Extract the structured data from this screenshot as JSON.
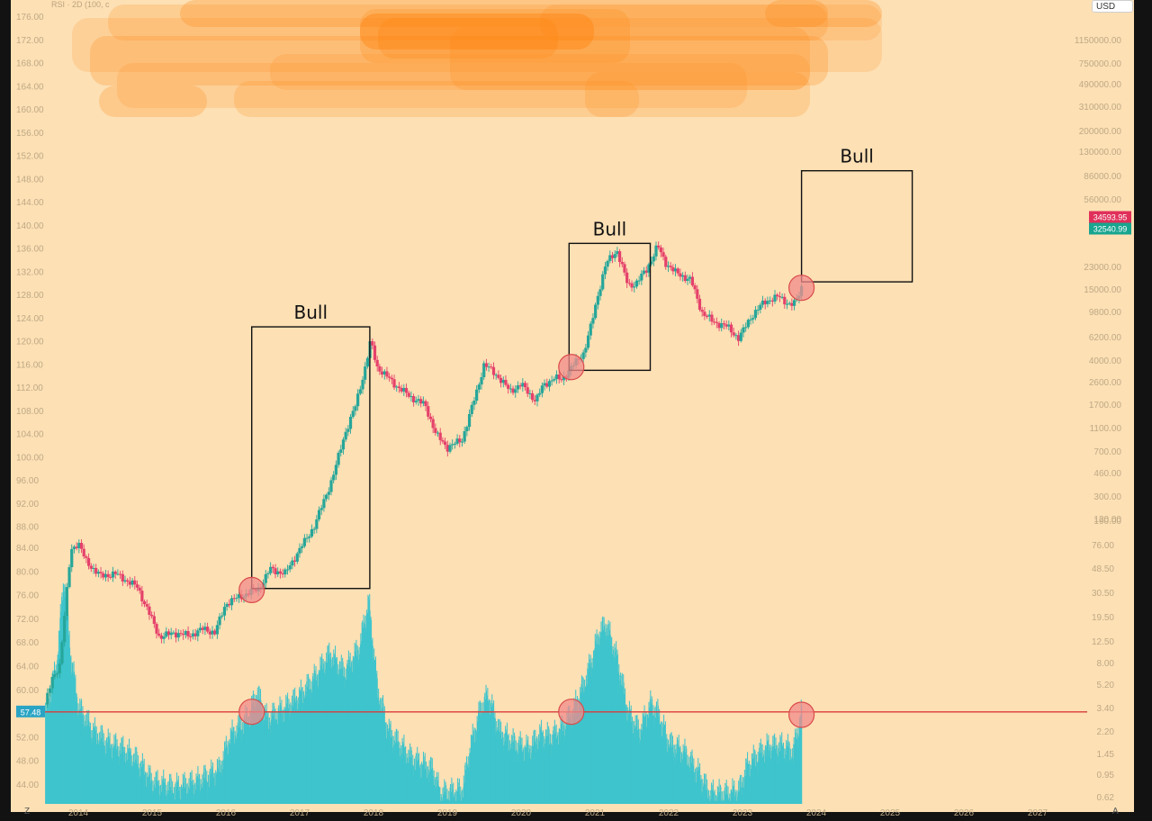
{
  "header": {
    "indicator_label": "RSI · 2D (100, c",
    "currency_badge": "USD",
    "corner_left": "Z",
    "corner_right": "A"
  },
  "colors": {
    "background": "#fde0b4",
    "frame": "#121212",
    "up": "#26a69a",
    "down": "#e5416b",
    "rsi_bar": "#3fc4cc",
    "reference_line": "#d93c3c",
    "circle_fill": "#f28b8b",
    "circle_stroke": "#d94b4b",
    "box_stroke": "#111111",
    "label_text": "#bfa985",
    "price_tag_red": "#e0305a",
    "price_tag_green": "#18a58f",
    "rsi_tag": "#2aa4c4",
    "smudge": "#ff8c1a"
  },
  "chart_data": {
    "type": "candlestick_with_rsi_histogram",
    "x_axis": {
      "labels": [
        "2014",
        "2015",
        "2016",
        "2017",
        "2018",
        "2019",
        "2020",
        "2021",
        "2022",
        "2023",
        "2024",
        "2025",
        "2026",
        "2027"
      ]
    },
    "price_panel": {
      "scale": "log",
      "left_axis_labels": [
        "176.00",
        "172.00",
        "168.00",
        "164.00",
        "160.00",
        "156.00",
        "152.00",
        "148.00",
        "144.00",
        "140.00",
        "136.00",
        "132.00",
        "128.00",
        "124.00",
        "120.00",
        "116.00",
        "112.00",
        "108.00",
        "104.00",
        "100.00",
        "96.00",
        "92.00",
        "88.00"
      ],
      "right_axis_labels": [
        "1150000.00",
        "750000.00",
        "490000.00",
        "310000.00",
        "200000.00",
        "130000.00",
        "86000.00",
        "56000.00",
        "23000.00",
        "15000.00",
        "9800.00",
        "6200.00",
        "4000.00",
        "2600.00",
        "1700.00",
        "1100.00",
        "700.00",
        "460.00",
        "300.00",
        "190.00",
        "120.00"
      ],
      "price_tags": [
        {
          "label": "34593.95",
          "color": "red"
        },
        {
          "label": "32540.99",
          "color": "green"
        }
      ],
      "path": [
        [
          2013.55,
          90
        ],
        [
          2013.65,
          130
        ],
        [
          2013.75,
          160
        ],
        [
          2013.9,
          820
        ],
        [
          2014.0,
          900
        ],
        [
          2014.1,
          700
        ],
        [
          2014.3,
          560
        ],
        [
          2014.5,
          580
        ],
        [
          2014.8,
          480
        ],
        [
          2015.0,
          300
        ],
        [
          2015.1,
          235
        ],
        [
          2015.3,
          250
        ],
        [
          2015.5,
          240
        ],
        [
          2015.7,
          265
        ],
        [
          2015.85,
          250
        ],
        [
          2016.0,
          380
        ],
        [
          2016.2,
          420
        ],
        [
          2016.45,
          470
        ],
        [
          2016.6,
          620
        ],
        [
          2016.8,
          580
        ],
        [
          2017.0,
          820
        ],
        [
          2017.2,
          1150
        ],
        [
          2017.45,
          2300
        ],
        [
          2017.6,
          4100
        ],
        [
          2017.75,
          6200
        ],
        [
          2017.9,
          11500
        ],
        [
          2017.96,
          16000
        ],
        [
          2018.05,
          11000
        ],
        [
          2018.3,
          8500
        ],
        [
          2018.5,
          7200
        ],
        [
          2018.7,
          6400
        ],
        [
          2018.85,
          4200
        ],
        [
          2019.0,
          3500
        ],
        [
          2019.2,
          3900
        ],
        [
          2019.4,
          7800
        ],
        [
          2019.5,
          11500
        ],
        [
          2019.7,
          9500
        ],
        [
          2019.85,
          7800
        ],
        [
          2020.0,
          8600
        ],
        [
          2020.2,
          6800
        ],
        [
          2020.3,
          8500
        ],
        [
          2020.45,
          9400
        ],
        [
          2020.55,
          9200
        ],
        [
          2020.7,
          11200
        ],
        [
          2020.85,
          13500
        ],
        [
          2020.95,
          20000
        ],
        [
          2021.05,
          32000
        ],
        [
          2021.15,
          48000
        ],
        [
          2021.3,
          58000
        ],
        [
          2021.45,
          35000
        ],
        [
          2021.55,
          36000
        ],
        [
          2021.7,
          44000
        ],
        [
          2021.85,
          62000
        ],
        [
          2021.95,
          49000
        ],
        [
          2022.1,
          42000
        ],
        [
          2022.3,
          38000
        ],
        [
          2022.45,
          24000
        ],
        [
          2022.6,
          21000
        ],
        [
          2022.8,
          19500
        ],
        [
          2022.95,
          16500
        ],
        [
          2023.1,
          22000
        ],
        [
          2023.3,
          28000
        ],
        [
          2023.5,
          30000
        ],
        [
          2023.65,
          26500
        ],
        [
          2023.72,
          27500
        ],
        [
          2023.8,
          34500
        ]
      ]
    },
    "rsi_panel": {
      "period": 100,
      "left_axis_labels": [
        "84.00",
        "80.00",
        "76.00",
        "72.00",
        "68.00",
        "64.00",
        "60.00",
        "56.00",
        "52.00",
        "48.00",
        "44.00"
      ],
      "right_axis_labels": [
        "76.00",
        "48.50",
        "30.50",
        "19.50",
        "12.50",
        "8.00",
        "5.20",
        "3.40",
        "2.20",
        "1.45",
        "0.95",
        "0.62"
      ],
      "current_value_tag": "57.48",
      "reference_level": 57.48,
      "path": [
        [
          2013.55,
          57
        ],
        [
          2013.7,
          65
        ],
        [
          2013.8,
          80
        ],
        [
          2013.9,
          66
        ],
        [
          2014.0,
          58
        ],
        [
          2014.2,
          54
        ],
        [
          2014.4,
          52
        ],
        [
          2014.6,
          51
        ],
        [
          2014.8,
          49
        ],
        [
          2015.0,
          45.5
        ],
        [
          2015.3,
          44.5
        ],
        [
          2015.6,
          45.5
        ],
        [
          2015.9,
          47.5
        ],
        [
          2016.05,
          53
        ],
        [
          2016.3,
          56.5
        ],
        [
          2016.42,
          60.5
        ],
        [
          2016.55,
          56
        ],
        [
          2016.8,
          58
        ],
        [
          2017.0,
          60
        ],
        [
          2017.2,
          63
        ],
        [
          2017.4,
          67
        ],
        [
          2017.6,
          64
        ],
        [
          2017.8,
          68
        ],
        [
          2017.93,
          76
        ],
        [
          2018.05,
          61
        ],
        [
          2018.2,
          54
        ],
        [
          2018.5,
          49.5
        ],
        [
          2018.8,
          47.5
        ],
        [
          2018.9,
          43.5
        ],
        [
          2019.2,
          44
        ],
        [
          2019.3,
          51
        ],
        [
          2019.45,
          58
        ],
        [
          2019.55,
          60
        ],
        [
          2019.7,
          54
        ],
        [
          2019.9,
          52
        ],
        [
          2020.1,
          51
        ],
        [
          2020.25,
          53.5
        ],
        [
          2020.4,
          53
        ],
        [
          2020.55,
          54.5
        ],
        [
          2020.7,
          57.5
        ],
        [
          2020.85,
          62
        ],
        [
          2020.95,
          66
        ],
        [
          2021.05,
          70.5
        ],
        [
          2021.15,
          72
        ],
        [
          2021.3,
          66
        ],
        [
          2021.45,
          57
        ],
        [
          2021.6,
          54
        ],
        [
          2021.75,
          58.5
        ],
        [
          2021.85,
          57
        ],
        [
          2022.0,
          52
        ],
        [
          2022.2,
          50.5
        ],
        [
          2022.4,
          47
        ],
        [
          2022.55,
          43.5
        ],
        [
          2022.8,
          43.5
        ],
        [
          2022.95,
          44
        ],
        [
          2023.05,
          48
        ],
        [
          2023.2,
          50
        ],
        [
          2023.35,
          51.5
        ],
        [
          2023.55,
          51.5
        ],
        [
          2023.68,
          50.5
        ],
        [
          2023.8,
          57.5
        ]
      ]
    },
    "annotations": {
      "boxes": [
        {
          "label": "Bull",
          "x0": 2016.35,
          "x1": 2017.95,
          "y0": 470,
          "y1": 19500
        },
        {
          "label": "Bull",
          "x0": 2020.65,
          "x1": 2021.75,
          "y0": 10500,
          "y1": 64000
        },
        {
          "label": "Bull",
          "x0": 2023.8,
          "x1": 2025.3,
          "y0": 37000,
          "y1": 180000
        }
      ],
      "price_circles": [
        {
          "x": 2016.35,
          "y": 460
        },
        {
          "x": 2020.68,
          "y": 11000
        },
        {
          "x": 2023.8,
          "y": 34000
        }
      ],
      "rsi_circles": [
        {
          "x": 2016.35,
          "y": 57.5
        },
        {
          "x": 2020.68,
          "y": 57.5
        },
        {
          "x": 2023.8,
          "y": 57.0
        }
      ]
    }
  }
}
